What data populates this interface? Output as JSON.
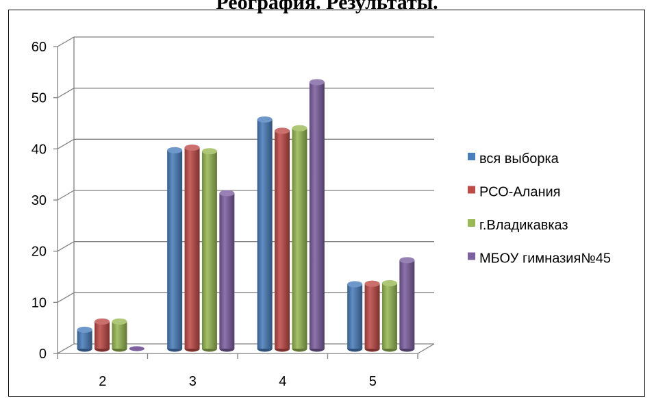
{
  "chart_data": {
    "type": "bar",
    "title": "Реография. Результаты.",
    "categories": [
      "2",
      "3",
      "4",
      "5"
    ],
    "ylim": [
      0,
      60
    ],
    "yticks": [
      "0",
      "10",
      "20",
      "30",
      "40",
      "50",
      "60"
    ],
    "grid": true,
    "legend_position": "right",
    "series": [
      {
        "name": "вся выборка",
        "color": "#4a7ebb",
        "values": [
          3.7,
          38.8,
          44.8,
          12.6
        ]
      },
      {
        "name": "РСО-Алания",
        "color": "#be4b48",
        "values": [
          5.3,
          39.3,
          42.6,
          12.7
        ]
      },
      {
        "name": "г.Владикавказ",
        "color": "#98b954",
        "values": [
          5.3,
          38.6,
          43.1,
          12.8
        ]
      },
      {
        "name": "МБОУ гимназия№45",
        "color": "#7d60a0",
        "values": [
          0,
          30.4,
          52.1,
          17.3
        ]
      }
    ]
  }
}
